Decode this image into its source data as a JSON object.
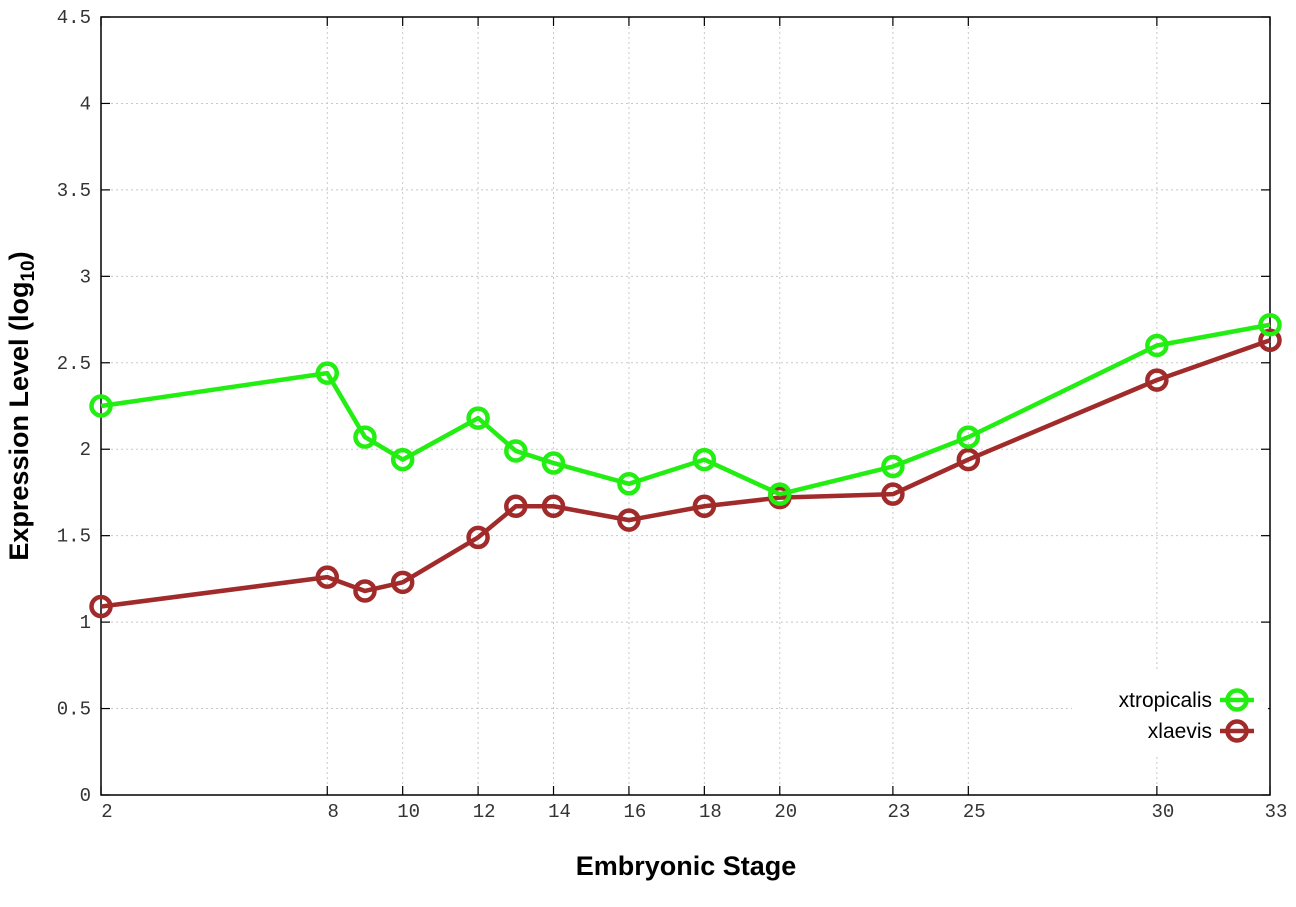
{
  "chart_data": {
    "type": "line",
    "xlabel": "Embryonic Stage",
    "ylabel_main": "Expression Level (log",
    "ylabel_sub": "10",
    "ylabel_close": ")",
    "ylim": [
      0,
      4.5
    ],
    "yticks": [
      0,
      0.5,
      1,
      1.5,
      2,
      2.5,
      3,
      3.5,
      4,
      4.5
    ],
    "ytick_labels": [
      "0",
      "0.5",
      "1",
      "1.5",
      "2",
      "2.5",
      "3",
      "3.5",
      "4",
      "4.5"
    ],
    "x": [
      2,
      8,
      9,
      10,
      12,
      13,
      14,
      16,
      18,
      20,
      23,
      25,
      30,
      33
    ],
    "xlim": [
      2,
      33
    ],
    "xticks": [
      2,
      8,
      10,
      12,
      14,
      16,
      18,
      20,
      23,
      25,
      30,
      33
    ],
    "xtick_labels": [
      "2",
      "8",
      "10",
      "12",
      "14",
      "16",
      "18",
      "20",
      "23",
      "25",
      "30",
      "33"
    ],
    "grid": true,
    "legend_position": "bottom-right",
    "series": [
      {
        "name": "xtropicalis",
        "color": "#22ee11",
        "values": [
          2.25,
          2.44,
          2.07,
          1.94,
          2.18,
          1.99,
          1.92,
          1.8,
          1.94,
          1.74,
          1.9,
          2.07,
          2.6,
          2.72
        ]
      },
      {
        "name": "xlaevis",
        "color": "#a12a2a",
        "values": [
          1.09,
          1.26,
          1.18,
          1.23,
          1.49,
          1.67,
          1.67,
          1.59,
          1.67,
          1.72,
          1.74,
          1.94,
          2.4,
          2.63
        ]
      }
    ]
  }
}
